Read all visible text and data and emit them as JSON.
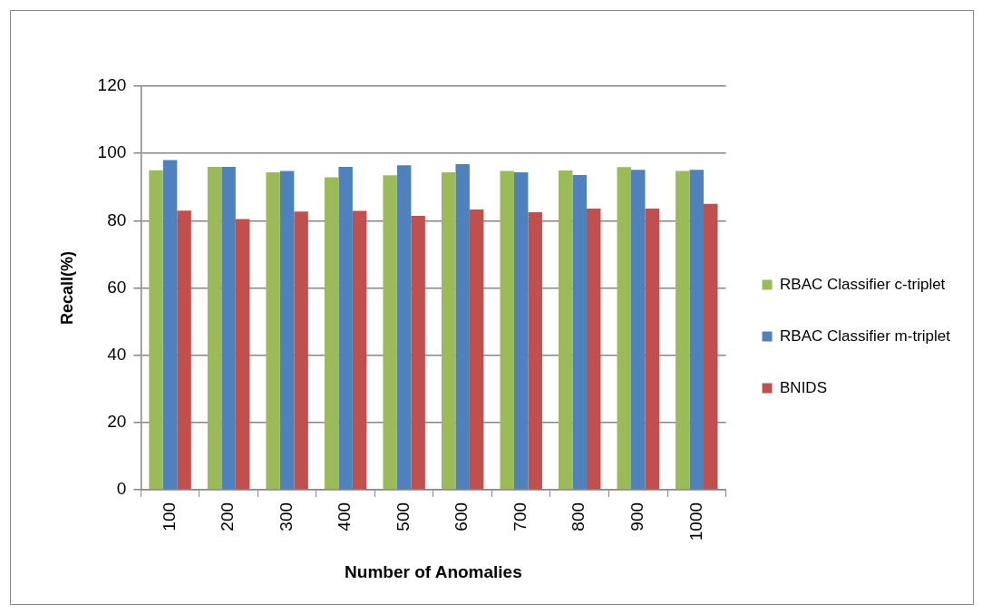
{
  "chart_data": {
    "type": "bar",
    "xlabel": "Number of Anomalies",
    "ylabel": "Recall(%)",
    "categories": [
      "100",
      "200",
      "300",
      "400",
      "500",
      "600",
      "700",
      "800",
      "900",
      "1000"
    ],
    "series": [
      {
        "name": "RBAC Classifier c-triplet",
        "color": "#9bbb59",
        "values": [
          95,
          96,
          94.4,
          92.9,
          93.5,
          94.4,
          94.8,
          94.9,
          95.9,
          94.8
        ]
      },
      {
        "name": "RBAC Classifier m-triplet",
        "color": "#4f81bd",
        "values": [
          98,
          96,
          94.8,
          96,
          96.5,
          96.8,
          94.4,
          93.6,
          95.1,
          95.1
        ]
      },
      {
        "name": "BNIDS",
        "color": "#c0504d",
        "values": [
          83,
          80.5,
          82.7,
          82.9,
          81.4,
          83.3,
          82.5,
          83.6,
          83.6,
          85
        ]
      }
    ],
    "ylim": [
      0,
      120
    ],
    "yticks": [
      0,
      20,
      40,
      60,
      80,
      100,
      120
    ],
    "grid": "y",
    "legend": "right"
  }
}
